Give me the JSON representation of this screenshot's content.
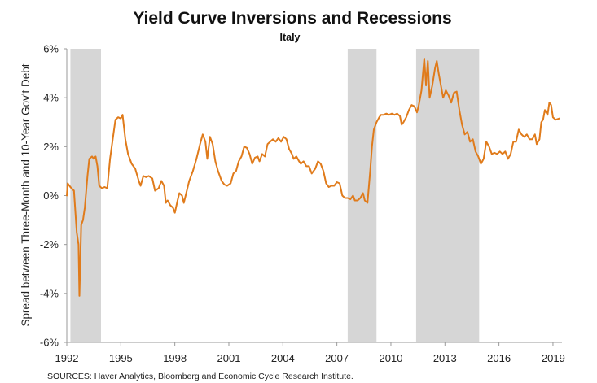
{
  "chart_data": {
    "type": "line",
    "title": "Yield Curve Inversions and Recessions",
    "subtitle": "Italy",
    "ylabel": "Spread between Three-Month and 10-Year Gov't Debt",
    "xlabel": "",
    "source": "SOURCES: Haver Analytics, Bloomberg and Economic Cycle Research Institute.",
    "xlim": [
      1992.0,
      2019.5
    ],
    "ylim": [
      -6,
      6
    ],
    "x_ticks": [
      {
        "value": 1992,
        "label": "1992"
      },
      {
        "value": 1995,
        "label": "1995"
      },
      {
        "value": 1998,
        "label": "1998"
      },
      {
        "value": 2001,
        "label": "2001"
      },
      {
        "value": 2004,
        "label": "2004"
      },
      {
        "value": 2007,
        "label": "2007"
      },
      {
        "value": 2010,
        "label": "2010"
      },
      {
        "value": 2013,
        "label": "2013"
      },
      {
        "value": 2016,
        "label": "2016"
      },
      {
        "value": 2019,
        "label": "2019"
      }
    ],
    "y_ticks": [
      {
        "value": 6,
        "label": "6%"
      },
      {
        "value": 4,
        "label": "4%"
      },
      {
        "value": 2,
        "label": "2%"
      },
      {
        "value": 0,
        "label": "0%"
      },
      {
        "value": -2,
        "label": "-2%"
      },
      {
        "value": -4,
        "label": "-4%"
      },
      {
        "value": -6,
        "label": "-6%"
      }
    ],
    "recessions": [
      {
        "start": 1992.2,
        "end": 1993.9
      },
      {
        "start": 2007.6,
        "end": 2009.2
      },
      {
        "start": 2011.4,
        "end": 2014.9
      }
    ],
    "series": [
      {
        "color": "#E07B1B",
        "points": [
          [
            1992.0,
            0.0
          ],
          [
            1992.05,
            0.5
          ],
          [
            1992.2,
            0.35
          ],
          [
            1992.4,
            0.2
          ],
          [
            1992.55,
            -1.5
          ],
          [
            1992.65,
            -2.0
          ],
          [
            1992.7,
            -4.1
          ],
          [
            1992.8,
            -1.2
          ],
          [
            1992.9,
            -1.0
          ],
          [
            1993.0,
            -0.5
          ],
          [
            1993.15,
            0.8
          ],
          [
            1993.25,
            1.5
          ],
          [
            1993.4,
            1.6
          ],
          [
            1993.5,
            1.5
          ],
          [
            1993.6,
            1.6
          ],
          [
            1993.7,
            1.2
          ],
          [
            1993.8,
            0.4
          ],
          [
            1993.95,
            0.3
          ],
          [
            1994.1,
            0.35
          ],
          [
            1994.25,
            0.3
          ],
          [
            1994.4,
            1.5
          ],
          [
            1994.55,
            2.3
          ],
          [
            1994.7,
            3.1
          ],
          [
            1994.85,
            3.2
          ],
          [
            1995.0,
            3.15
          ],
          [
            1995.1,
            3.3
          ],
          [
            1995.25,
            2.3
          ],
          [
            1995.4,
            1.7
          ],
          [
            1995.6,
            1.3
          ],
          [
            1995.8,
            1.1
          ],
          [
            1996.0,
            0.6
          ],
          [
            1996.1,
            0.4
          ],
          [
            1996.25,
            0.8
          ],
          [
            1996.4,
            0.75
          ],
          [
            1996.55,
            0.8
          ],
          [
            1996.75,
            0.7
          ],
          [
            1996.9,
            0.2
          ],
          [
            1997.1,
            0.3
          ],
          [
            1997.25,
            0.6
          ],
          [
            1997.4,
            0.4
          ],
          [
            1997.5,
            -0.3
          ],
          [
            1997.6,
            -0.2
          ],
          [
            1997.75,
            -0.4
          ],
          [
            1997.9,
            -0.5
          ],
          [
            1998.0,
            -0.7
          ],
          [
            1998.15,
            -0.2
          ],
          [
            1998.25,
            0.1
          ],
          [
            1998.4,
            0.0
          ],
          [
            1998.5,
            -0.3
          ],
          [
            1998.6,
            0.0
          ],
          [
            1998.8,
            0.6
          ],
          [
            1999.0,
            1.0
          ],
          [
            1999.2,
            1.5
          ],
          [
            1999.4,
            2.1
          ],
          [
            1999.55,
            2.5
          ],
          [
            1999.7,
            2.2
          ],
          [
            1999.8,
            1.5
          ],
          [
            1999.95,
            2.4
          ],
          [
            2000.1,
            2.1
          ],
          [
            2000.25,
            1.4
          ],
          [
            2000.4,
            1.0
          ],
          [
            2000.6,
            0.6
          ],
          [
            2000.75,
            0.45
          ],
          [
            2000.9,
            0.4
          ],
          [
            2001.1,
            0.5
          ],
          [
            2001.25,
            0.9
          ],
          [
            2001.4,
            1.0
          ],
          [
            2001.55,
            1.4
          ],
          [
            2001.7,
            1.6
          ],
          [
            2001.85,
            2.0
          ],
          [
            2002.0,
            1.95
          ],
          [
            2002.15,
            1.7
          ],
          [
            2002.3,
            1.3
          ],
          [
            2002.45,
            1.55
          ],
          [
            2002.6,
            1.6
          ],
          [
            2002.7,
            1.4
          ],
          [
            2002.85,
            1.7
          ],
          [
            2003.0,
            1.6
          ],
          [
            2003.15,
            2.1
          ],
          [
            2003.3,
            2.2
          ],
          [
            2003.45,
            2.3
          ],
          [
            2003.6,
            2.2
          ],
          [
            2003.75,
            2.35
          ],
          [
            2003.9,
            2.2
          ],
          [
            2004.05,
            2.4
          ],
          [
            2004.2,
            2.3
          ],
          [
            2004.35,
            1.9
          ],
          [
            2004.5,
            1.7
          ],
          [
            2004.6,
            1.5
          ],
          [
            2004.75,
            1.6
          ],
          [
            2004.9,
            1.4
          ],
          [
            2005.0,
            1.3
          ],
          [
            2005.15,
            1.4
          ],
          [
            2005.3,
            1.2
          ],
          [
            2005.45,
            1.2
          ],
          [
            2005.6,
            0.9
          ],
          [
            2005.8,
            1.1
          ],
          [
            2005.95,
            1.4
          ],
          [
            2006.1,
            1.3
          ],
          [
            2006.25,
            1.0
          ],
          [
            2006.4,
            0.5
          ],
          [
            2006.55,
            0.35
          ],
          [
            2006.7,
            0.4
          ],
          [
            2006.85,
            0.4
          ],
          [
            2007.0,
            0.55
          ],
          [
            2007.15,
            0.5
          ],
          [
            2007.3,
            0.0
          ],
          [
            2007.45,
            -0.1
          ],
          [
            2007.6,
            -0.1
          ],
          [
            2007.75,
            -0.15
          ],
          [
            2007.9,
            0.0
          ],
          [
            2008.0,
            -0.2
          ],
          [
            2008.15,
            -0.2
          ],
          [
            2008.3,
            -0.1
          ],
          [
            2008.45,
            0.1
          ],
          [
            2008.55,
            -0.2
          ],
          [
            2008.7,
            -0.3
          ],
          [
            2008.85,
            1.0
          ],
          [
            2008.95,
            2.0
          ],
          [
            2009.05,
            2.7
          ],
          [
            2009.2,
            3.0
          ],
          [
            2009.35,
            3.2
          ],
          [
            2009.45,
            3.3
          ],
          [
            2009.6,
            3.3
          ],
          [
            2009.75,
            3.35
          ],
          [
            2009.9,
            3.3
          ],
          [
            2010.05,
            3.35
          ],
          [
            2010.2,
            3.3
          ],
          [
            2010.35,
            3.35
          ],
          [
            2010.5,
            3.25
          ],
          [
            2010.6,
            2.9
          ],
          [
            2010.7,
            3.0
          ],
          [
            2010.85,
            3.2
          ],
          [
            2011.0,
            3.5
          ],
          [
            2011.15,
            3.7
          ],
          [
            2011.3,
            3.65
          ],
          [
            2011.45,
            3.4
          ],
          [
            2011.55,
            3.7
          ],
          [
            2011.7,
            4.3
          ],
          [
            2011.85,
            5.6
          ],
          [
            2011.95,
            4.5
          ],
          [
            2012.05,
            5.5
          ],
          [
            2012.15,
            4.0
          ],
          [
            2012.3,
            4.5
          ],
          [
            2012.45,
            5.2
          ],
          [
            2012.55,
            5.5
          ],
          [
            2012.65,
            5.0
          ],
          [
            2012.8,
            4.4
          ],
          [
            2012.9,
            4.0
          ],
          [
            2013.05,
            4.3
          ],
          [
            2013.2,
            4.1
          ],
          [
            2013.35,
            3.8
          ],
          [
            2013.5,
            4.2
          ],
          [
            2013.65,
            4.25
          ],
          [
            2013.8,
            3.5
          ],
          [
            2013.95,
            2.9
          ],
          [
            2014.1,
            2.5
          ],
          [
            2014.25,
            2.6
          ],
          [
            2014.4,
            2.2
          ],
          [
            2014.55,
            2.3
          ],
          [
            2014.7,
            1.8
          ],
          [
            2014.85,
            1.6
          ],
          [
            2015.0,
            1.3
          ],
          [
            2015.15,
            1.5
          ],
          [
            2015.3,
            2.2
          ],
          [
            2015.45,
            2.0
          ],
          [
            2015.6,
            1.7
          ],
          [
            2015.75,
            1.75
          ],
          [
            2015.9,
            1.7
          ],
          [
            2016.05,
            1.8
          ],
          [
            2016.2,
            1.7
          ],
          [
            2016.35,
            1.8
          ],
          [
            2016.5,
            1.5
          ],
          [
            2016.65,
            1.7
          ],
          [
            2016.8,
            2.2
          ],
          [
            2016.95,
            2.2
          ],
          [
            2017.1,
            2.7
          ],
          [
            2017.25,
            2.5
          ],
          [
            2017.4,
            2.4
          ],
          [
            2017.55,
            2.5
          ],
          [
            2017.7,
            2.3
          ],
          [
            2017.85,
            2.3
          ],
          [
            2018.0,
            2.5
          ],
          [
            2018.1,
            2.1
          ],
          [
            2018.25,
            2.3
          ],
          [
            2018.35,
            3.0
          ],
          [
            2018.45,
            3.1
          ],
          [
            2018.55,
            3.5
          ],
          [
            2018.7,
            3.3
          ],
          [
            2018.8,
            3.8
          ],
          [
            2018.9,
            3.7
          ],
          [
            2019.0,
            3.2
          ],
          [
            2019.15,
            3.1
          ],
          [
            2019.35,
            3.15
          ]
        ]
      }
    ]
  }
}
